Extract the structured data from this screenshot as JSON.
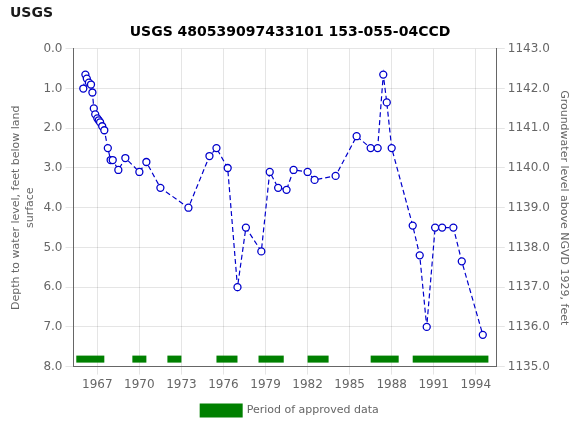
{
  "chart_data": {
    "type": "line",
    "title": "USGS 480539097433101 153-055-04CCD",
    "annotations": [
      "USGS"
    ],
    "ylabel": "Depth to water level, feet below land\nsurface",
    "y2label": "Groundwater level above NGVD 1929, feet",
    "x": [
      1966.0,
      1966.15,
      1966.25,
      1966.4,
      1966.55,
      1966.65,
      1966.75,
      1966.85,
      1967.0,
      1967.1,
      1967.2,
      1967.35,
      1967.5,
      1967.75,
      1967.95,
      1968.1,
      1968.5,
      1969.0,
      1970.0,
      1970.5,
      1971.5,
      1973.5,
      1975.0,
      1975.5,
      1976.3,
      1977.0,
      1977.6,
      1978.7,
      1979.3,
      1979.9,
      1980.5,
      1981.0,
      1982.0,
      1982.5,
      1984.0,
      1985.5,
      1986.5,
      1987.0,
      1987.4,
      1987.65,
      1988.0,
      1989.5,
      1990.0,
      1990.5,
      1991.1,
      1991.6,
      1992.4,
      1993.0,
      1994.5
    ],
    "series": [
      {
        "color": "#0000cc",
        "line_style": "dashed",
        "marker": "circle",
        "values": [
          1.0,
          0.65,
          0.75,
          0.85,
          0.9,
          1.1,
          1.5,
          1.65,
          1.75,
          1.8,
          1.85,
          1.95,
          2.05,
          2.5,
          2.8,
          2.8,
          3.05,
          2.75,
          3.1,
          2.85,
          3.5,
          4.0,
          2.7,
          2.5,
          3.0,
          6.0,
          4.5,
          5.1,
          3.1,
          3.5,
          3.55,
          3.05,
          3.1,
          3.3,
          3.2,
          2.2,
          2.5,
          2.5,
          0.65,
          1.35,
          2.5,
          4.45,
          5.2,
          7.0,
          4.5,
          4.5,
          4.5,
          5.35,
          7.2
        ]
      },
      {
        "name": "Period of approved data",
        "type": "bar",
        "color": "#008000",
        "ranges": [
          [
            1965.5,
            1967.5
          ],
          [
            1969.5,
            1970.5
          ],
          [
            1972.0,
            1973.0
          ],
          [
            1975.5,
            1977.0
          ],
          [
            1978.5,
            1980.3
          ],
          [
            1982.0,
            1983.5
          ],
          [
            1986.5,
            1988.5
          ],
          [
            1989.5,
            1994.9
          ]
        ]
      }
    ],
    "xlim": [
      1965.3,
      1995.5
    ],
    "xticks": [
      1967,
      1970,
      1973,
      1976,
      1979,
      1982,
      1985,
      1988,
      1991,
      1994
    ],
    "ylim": [
      8.0,
      0.0
    ],
    "yticks": [
      {
        "value": 0.0,
        "label": "0.0"
      },
      {
        "value": 1.0,
        "label": "1.0"
      },
      {
        "value": 2.0,
        "label": "2.0"
      },
      {
        "value": 3.0,
        "label": "3.0"
      },
      {
        "value": 4.0,
        "label": "4.0"
      },
      {
        "value": 5.0,
        "label": "5.0"
      },
      {
        "value": 6.0,
        "label": "6.0"
      },
      {
        "value": 7.0,
        "label": "7.0"
      },
      {
        "value": 8.0,
        "label": "8.0"
      }
    ],
    "y2lim": [
      1135.0,
      1143.0
    ],
    "y2ticks": [
      {
        "value": 1135.0,
        "label": "1135.0"
      },
      {
        "value": 1136.0,
        "label": "1136.0"
      },
      {
        "value": 1137.0,
        "label": "1137.0"
      },
      {
        "value": 1138.0,
        "label": "1138.0"
      },
      {
        "value": 1139.0,
        "label": "1139.0"
      },
      {
        "value": 1140.0,
        "label": "1140.0"
      },
      {
        "value": 1141.0,
        "label": "1141.0"
      },
      {
        "value": 1142.0,
        "label": "1142.0"
      },
      {
        "value": 1143.0,
        "label": "1143.0"
      }
    ],
    "grid": true,
    "legend": "bottom"
  }
}
